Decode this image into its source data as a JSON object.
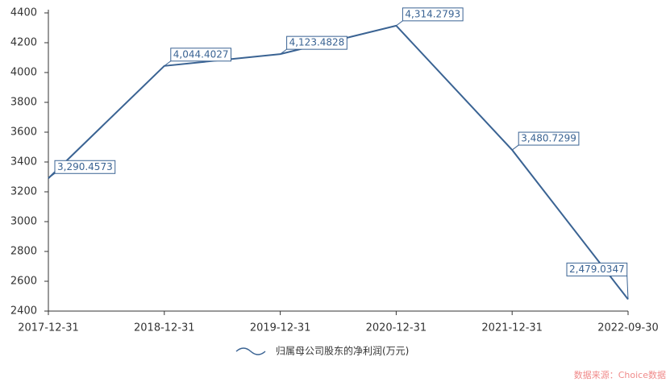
{
  "chart_data": {
    "type": "line",
    "categories": [
      "2017-12-31",
      "2018-12-31",
      "2019-12-31",
      "2020-12-31",
      "2021-12-31",
      "2022-09-30"
    ],
    "series": [
      {
        "name": "归属母公司股东的净利润(万元)",
        "color": "#3a6393",
        "values": [
          3290.4573,
          4044.4027,
          4123.4828,
          4314.2793,
          3480.7299,
          2479.0347
        ],
        "value_labels": [
          "3,290.4573",
          "4,044.4027",
          "4,123.4828",
          "4,314.2793",
          "3,480.7299",
          "2,479.0347"
        ]
      }
    ],
    "ylim": [
      2400,
      4400
    ],
    "yticks": [
      2400,
      2600,
      2800,
      3000,
      3200,
      3400,
      3600,
      3800,
      4000,
      4200,
      4400
    ],
    "source": "数据来源：Choice数据"
  }
}
